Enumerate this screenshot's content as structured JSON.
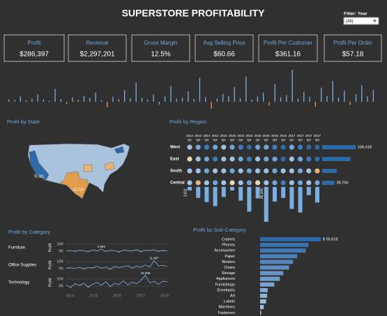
{
  "header": {
    "title": "SUPERSTORE PROFITABILITY"
  },
  "filter": {
    "label": "Filter: Year",
    "value": "(All)"
  },
  "kpis": [
    {
      "label": "Profit",
      "value": "$286,397"
    },
    {
      "label": "Revenue",
      "value": "$2,297,201"
    },
    {
      "label": "Gross Margin",
      "value": "12.5%"
    },
    {
      "label": "Avg Selling Price",
      "value": "$60.66"
    },
    {
      "label": "Profit Per Customer",
      "value": "$361.16"
    },
    {
      "label": "Profit Per Order",
      "value": "$57.18"
    }
  ],
  "timeline": {
    "values": [
      420,
      310,
      880,
      260,
      540,
      1200,
      380,
      150,
      2100,
      460,
      -350,
      720,
      330,
      980,
      610,
      1500,
      270,
      -900,
      850,
      440,
      1900,
      560,
      3100,
      700,
      390,
      1200,
      -420,
      880,
      2600,
      520,
      640,
      1700,
      450,
      3900,
      780,
      -1100,
      560,
      1300,
      930,
      2400,
      600,
      4100,
      350,
      870,
      1500,
      -600,
      2900,
      740,
      1100,
      5200,
      480,
      1600,
      820,
      -800,
      2300,
      960,
      3400,
      700,
      1800,
      -500,
      1250,
      2700,
      880,
      1900
    ]
  },
  "state_map": {
    "title": "Profit by State",
    "labels": [
      "76,381",
      "-25,729"
    ]
  },
  "region": {
    "title": "Profit by Region",
    "columns": [
      {
        "year": "2014",
        "quarter": "Q1"
      },
      {
        "year": "2014",
        "quarter": "Q2"
      },
      {
        "year": "2014",
        "quarter": "Q3"
      },
      {
        "year": "2014",
        "quarter": "Q4"
      },
      {
        "year": "2015",
        "quarter": "Q1"
      },
      {
        "year": "2015",
        "quarter": "Q2"
      },
      {
        "year": "2015",
        "quarter": "Q3"
      },
      {
        "year": "2015",
        "quarter": "Q4"
      },
      {
        "year": "2016",
        "quarter": "Q1"
      },
      {
        "year": "2016",
        "quarter": "Q2"
      },
      {
        "year": "2016",
        "quarter": "Q3"
      },
      {
        "year": "2016",
        "quarter": "Q4"
      },
      {
        "year": "2017",
        "quarter": "Q1"
      },
      {
        "year": "2017",
        "quarter": "Q2"
      },
      {
        "year": "2017",
        "quarter": "Q3"
      },
      {
        "year": "2017",
        "quarter": "Q4"
      }
    ],
    "regions": [
      "West",
      "East",
      "South",
      "Central"
    ],
    "dot_colors": [
      [
        "#9fc3e6",
        "#6fa8dc",
        "#3d7cc0",
        "#6fa8dc",
        "#9fc3e6",
        "#6fa8dc",
        "#3d7cc0",
        "#2f6aa8",
        "#6fa8dc",
        "#6fa8dc",
        "#3d7cc0",
        "#2f6aa8",
        "#6fa8dc",
        "#3d7cc0",
        "#2f6aa8",
        "#2f6aa8"
      ],
      [
        "#e8d8b0",
        "#9fc3e6",
        "#6fa8dc",
        "#3d7cc0",
        "#9fc3e6",
        "#9fc3e6",
        "#6fa8dc",
        "#3d7cc0",
        "#9fc3e6",
        "#6fa8dc",
        "#6fa8dc",
        "#2f6aa8",
        "#9fc3e6",
        "#6fa8dc",
        "#3d7cc0",
        "#2f6aa8"
      ],
      [
        "#9fc3e6",
        "#9fc3e6",
        "#6fa8dc",
        "#9fc3e6",
        "#9fc3e6",
        "#6fa8dc",
        "#9fc3e6",
        "#6fa8dc",
        "#9fc3e6",
        "#9fc3e6",
        "#6fa8dc",
        "#9fc3e6",
        "#9fc3e6",
        "#6fa8dc",
        "#9fc3e6",
        "#e8b27a"
      ],
      [
        "#9fc3e6",
        "#e8b27a",
        "#9fc3e6",
        "#6fa8dc",
        "#9fc3e6",
        "#e8d8b0",
        "#9fc3e6",
        "#6fa8dc",
        "#e8d8b0",
        "#9fc3e6",
        "#6fa8dc",
        "#3d7cc0",
        "#9fc3e6",
        "#6fa8dc",
        "#9fc3e6",
        "#6fa8dc"
      ]
    ],
    "totals": [
      108418,
      91522,
      46749,
      39706
    ],
    "total_labels": [
      "108,418",
      null,
      null,
      "39,706"
    ],
    "quarterly": [
      3811,
      12000,
      16500,
      21000,
      11000,
      3800,
      15000,
      27000,
      12500,
      38140,
      16000,
      12000,
      24000,
      28000,
      9000,
      17000
    ],
    "quarterly_labels": [
      "3,811",
      null,
      null,
      null,
      null,
      null,
      null,
      null,
      null,
      "38,140",
      null,
      null,
      null,
      null,
      null,
      null
    ]
  },
  "category": {
    "title": "Profit by Category",
    "axis_label": "Profit",
    "ylim": [
      -6000,
      16000
    ],
    "yticks": [
      {
        "value": 10000,
        "label": "10K"
      },
      {
        "value": 0,
        "label": "0K"
      }
    ],
    "x_ticks": [
      "2014",
      "2015",
      "2016",
      "2017",
      "2018"
    ],
    "rows": [
      {
        "name": "Furniture",
        "values": [
          200,
          900,
          -300,
          1400,
          600,
          -800,
          1800,
          500,
          2962,
          -400,
          1100,
          700,
          -1200,
          1500,
          900,
          300,
          2100,
          -600,
          1300,
          800,
          1900,
          -200,
          1000,
          600
        ],
        "value_labels": [
          null,
          null,
          null,
          null,
          null,
          null,
          null,
          null,
          "2,962",
          null,
          null,
          null,
          null,
          null,
          null,
          null,
          null,
          null,
          null,
          null,
          null,
          null,
          null,
          null
        ]
      },
      {
        "name": "Office Supplies",
        "values": [
          500,
          1200,
          300,
          2000,
          -400,
          1800,
          900,
          3500,
          600,
          2400,
          -800,
          3100,
          1500,
          2700,
          4200,
          800,
          3600,
          1900,
          5100,
          2300,
          11467,
          3800,
          4600,
          3000
        ],
        "value_labels": [
          null,
          null,
          null,
          null,
          null,
          null,
          null,
          null,
          null,
          null,
          null,
          null,
          null,
          null,
          null,
          null,
          null,
          null,
          null,
          null,
          "11,467",
          null,
          null,
          null
        ]
      },
      {
        "name": "Technology",
        "values": [
          1000,
          -2000,
          3500,
          800,
          4200,
          -1500,
          2600,
          5300,
          1200,
          6100,
          -800,
          3900,
          2200,
          7400,
          1800,
          5600,
          3100,
          8200,
          15208,
          4500,
          6800,
          2400,
          7100,
          5900
        ],
        "value_labels": [
          null,
          null,
          null,
          null,
          null,
          null,
          null,
          null,
          null,
          null,
          null,
          null,
          null,
          null,
          null,
          null,
          null,
          null,
          "15,208",
          null,
          null,
          null,
          null,
          null
        ]
      }
    ]
  },
  "sub_category": {
    "title": "Profit by Sub-Category",
    "names": [
      "Copiers",
      "Phones",
      "Accessories",
      "Paper",
      "Binders",
      "Chairs",
      "Storage",
      "Appliances",
      "Furnishings",
      "Envelopes",
      "Art",
      "Labels",
      "Machines",
      "Fasteners"
    ],
    "values": [
      55618,
      44516,
      41937,
      34054,
      30222,
      26590,
      21279,
      18138,
      13059,
      6964,
      6528,
      5546,
      3385,
      949
    ],
    "value_labels": [
      "$ 55,618",
      null,
      null,
      null,
      null,
      null,
      null,
      null,
      null,
      null,
      null,
      null,
      null,
      null
    ]
  }
}
